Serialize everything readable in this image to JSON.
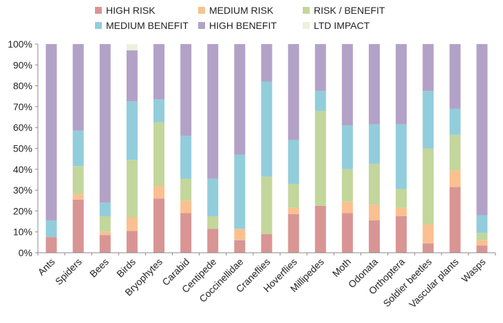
{
  "chart_data": {
    "type": "bar",
    "stacked": true,
    "normalized": true,
    "title": "",
    "xlabel": "",
    "ylabel": "",
    "ylim": [
      0,
      100
    ],
    "y_ticks": [
      "0%",
      "10%",
      "20%",
      "30%",
      "40%",
      "50%",
      "60%",
      "70%",
      "80%",
      "90%",
      "100%"
    ],
    "grid": false,
    "legend_position": "top",
    "categories": [
      "Ants",
      "Spiders",
      "Bees",
      "Birds",
      "Bryophytes",
      "Carabid",
      "Centipede",
      "Coccinellidae",
      "Craneflies",
      "Hoverflies",
      "Millipedes",
      "Moth",
      "Odonata",
      "Orthoptera",
      "Soldier beetles",
      "Vascular plants",
      "Wasps"
    ],
    "series": [
      {
        "name": "HIGH RISK",
        "color": "#d99594",
        "values": [
          7.5,
          25.5,
          8.5,
          10.5,
          26.0,
          19.0,
          11.5,
          6.0,
          9.0,
          18.5,
          22.5,
          19.0,
          15.5,
          17.5,
          4.5,
          31.5,
          3.5
        ]
      },
      {
        "name": "MEDIUM RISK",
        "color": "#fac090",
        "values": [
          0,
          2.5,
          1.5,
          6.5,
          6.0,
          6.0,
          0,
          5.5,
          0,
          3.0,
          0,
          5.5,
          7.5,
          4.0,
          9.0,
          8.0,
          2.5
        ]
      },
      {
        "name": "RISK / BENEFIT",
        "color": "#c3d69b",
        "values": [
          0,
          13.5,
          7.5,
          27.5,
          30.5,
          10.5,
          6.0,
          0,
          27.5,
          11.5,
          45.5,
          15.5,
          19.5,
          9.0,
          36.5,
          17.0,
          3.5
        ]
      },
      {
        "name": "MEDIUM BENEFIT",
        "color": "#92cddc",
        "values": [
          8.0,
          17.0,
          6.5,
          28.0,
          11.0,
          20.5,
          18.0,
          35.5,
          45.5,
          21.0,
          9.5,
          21.0,
          19.0,
          31.0,
          27.5,
          12.5,
          8.5
        ]
      },
      {
        "name": "HIGH BENEFIT",
        "color": "#b3a2c7",
        "values": [
          84.5,
          41.5,
          76.0,
          24.5,
          26.5,
          44.0,
          64.5,
          53.0,
          18.0,
          46.0,
          22.5,
          39.0,
          38.5,
          38.5,
          22.5,
          31.0,
          82.0
        ]
      },
      {
        "name": "LTD IMPACT",
        "color": "#ebf1de",
        "values": [
          0,
          0,
          0,
          3.0,
          0,
          0,
          0,
          0,
          0,
          0,
          0,
          0,
          0,
          0,
          0,
          0,
          0
        ]
      }
    ]
  }
}
